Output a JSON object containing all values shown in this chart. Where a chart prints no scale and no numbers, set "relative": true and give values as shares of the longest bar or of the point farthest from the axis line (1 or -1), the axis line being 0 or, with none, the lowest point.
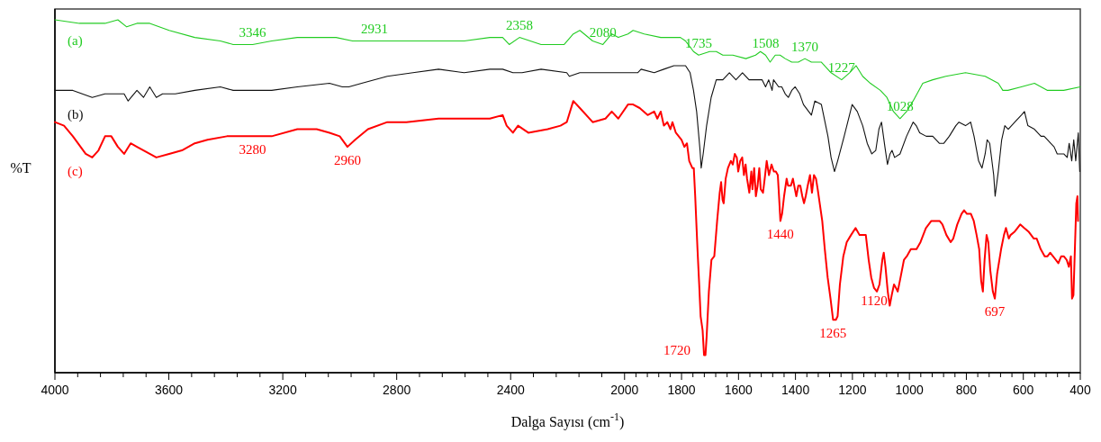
{
  "chart_data": {
    "type": "line",
    "relative": true,
    "xlabel": "Dalga Sayısı (cm$^{-1}$)",
    "ylabel": "%T",
    "xlim": [
      4000,
      400
    ],
    "xticks": [
      4000,
      3600,
      3200,
      2800,
      2400,
      2000,
      1800,
      1600,
      1400,
      1200,
      1000,
      800,
      600,
      400
    ],
    "grid": false,
    "marker": "none",
    "line_style": "solid",
    "series": [
      {
        "name": "(a)",
        "color": "#22cc22",
        "x": [
          4000,
          3914,
          3824,
          3779,
          3748,
          3712,
          3667,
          3599,
          3509,
          3419,
          3374,
          3306,
          3239,
          3149,
          3058,
          3013,
          2955,
          2878,
          2788,
          2698,
          2676,
          2630,
          2563,
          2473,
          2428,
          2405,
          2369,
          2293,
          2225,
          2212,
          2180,
          2157,
          2112,
          2076,
          2045,
          2022,
          1988,
          1970,
          1931,
          1873,
          1804,
          1786,
          1758,
          1740,
          1701,
          1678,
          1655,
          1620,
          1574,
          1540,
          1523,
          1505,
          1489,
          1471,
          1454,
          1436,
          1413,
          1390,
          1367,
          1344,
          1309,
          1275,
          1238,
          1210,
          1187,
          1164,
          1137,
          1102,
          1079,
          1056,
          1033,
          1010,
          987,
          953,
          918,
          872,
          803,
          734,
          688,
          672,
          654,
          607,
          561,
          515,
          492,
          458,
          400
        ],
        "values": [
          1.0,
          0.99,
          0.99,
          1.0,
          0.98,
          0.99,
          0.99,
          0.97,
          0.95,
          0.94,
          0.93,
          0.93,
          0.94,
          0.95,
          0.95,
          0.95,
          0.94,
          0.94,
          0.94,
          0.94,
          0.94,
          0.94,
          0.94,
          0.95,
          0.95,
          0.93,
          0.95,
          0.93,
          0.93,
          0.93,
          0.96,
          0.97,
          0.94,
          0.93,
          0.96,
          0.95,
          0.96,
          0.97,
          0.96,
          0.95,
          0.95,
          0.94,
          0.91,
          0.9,
          0.91,
          0.91,
          0.9,
          0.9,
          0.89,
          0.9,
          0.91,
          0.9,
          0.88,
          0.9,
          0.9,
          0.89,
          0.88,
          0.88,
          0.89,
          0.88,
          0.88,
          0.85,
          0.83,
          0.85,
          0.87,
          0.84,
          0.82,
          0.8,
          0.78,
          0.74,
          0.72,
          0.74,
          0.77,
          0.82,
          0.83,
          0.84,
          0.85,
          0.84,
          0.82,
          0.8,
          0.8,
          0.81,
          0.82,
          0.8,
          0.8,
          0.8,
          0.81
        ]
      },
      {
        "name": "(b)",
        "color": "#111111",
        "x": [
          4000,
          3937,
          3869,
          3824,
          3757,
          3743,
          3712,
          3689,
          3667,
          3644,
          3622,
          3577,
          3509,
          3419,
          3374,
          3306,
          3239,
          3149,
          3036,
          2991,
          2968,
          2923,
          2833,
          2743,
          2653,
          2563,
          2473,
          2428,
          2392,
          2360,
          2293,
          2203,
          2194,
          2157,
          2112,
          2022,
          1984,
          1954,
          1942,
          1896,
          1862,
          1827,
          1786,
          1770,
          1758,
          1747,
          1735,
          1731,
          1724,
          1712,
          1696,
          1678,
          1655,
          1632,
          1609,
          1586,
          1563,
          1540,
          1517,
          1505,
          1494,
          1482,
          1477,
          1459,
          1448,
          1436,
          1425,
          1413,
          1401,
          1385,
          1372,
          1344,
          1332,
          1309,
          1286,
          1275,
          1263,
          1252,
          1229,
          1201,
          1183,
          1164,
          1148,
          1132,
          1118,
          1107,
          1098,
          1086,
          1077,
          1068,
          1061,
          1052,
          1033,
          1010,
          987,
          976,
          964,
          941,
          918,
          895,
          879,
          860,
          837,
          826,
          803,
          785,
          773,
          757,
          745,
          734,
          727,
          718,
          704,
          699,
          688,
          676,
          665,
          653,
          630,
          607,
          596,
          584,
          561,
          538,
          527,
          515,
          504,
          492,
          481,
          458,
          446,
          439,
          430,
          423,
          416,
          407,
          402
        ],
        "values": [
          0.8,
          0.8,
          0.78,
          0.79,
          0.79,
          0.77,
          0.8,
          0.78,
          0.81,
          0.78,
          0.79,
          0.79,
          0.8,
          0.81,
          0.8,
          0.8,
          0.8,
          0.81,
          0.82,
          0.81,
          0.81,
          0.82,
          0.84,
          0.85,
          0.86,
          0.85,
          0.86,
          0.86,
          0.85,
          0.85,
          0.86,
          0.85,
          0.84,
          0.85,
          0.85,
          0.85,
          0.85,
          0.85,
          0.86,
          0.85,
          0.86,
          0.87,
          0.87,
          0.85,
          0.8,
          0.74,
          0.63,
          0.58,
          0.62,
          0.7,
          0.78,
          0.83,
          0.83,
          0.85,
          0.83,
          0.85,
          0.83,
          0.83,
          0.83,
          0.81,
          0.83,
          0.8,
          0.83,
          0.81,
          0.81,
          0.79,
          0.78,
          0.8,
          0.81,
          0.79,
          0.76,
          0.73,
          0.77,
          0.76,
          0.67,
          0.61,
          0.57,
          0.6,
          0.67,
          0.76,
          0.74,
          0.7,
          0.65,
          0.62,
          0.63,
          0.69,
          0.71,
          0.64,
          0.59,
          0.62,
          0.63,
          0.61,
          0.62,
          0.67,
          0.71,
          0.7,
          0.68,
          0.67,
          0.67,
          0.65,
          0.65,
          0.67,
          0.7,
          0.71,
          0.7,
          0.71,
          0.67,
          0.6,
          0.58,
          0.62,
          0.66,
          0.65,
          0.56,
          0.5,
          0.57,
          0.66,
          0.7,
          0.69,
          0.71,
          0.73,
          0.74,
          0.7,
          0.69,
          0.67,
          0.67,
          0.66,
          0.65,
          0.64,
          0.62,
          0.62,
          0.61,
          0.65,
          0.6,
          0.66,
          0.6,
          0.68,
          0.57
        ]
      },
      {
        "name": "(c)",
        "color": "#ff0000",
        "x": [
          4000,
          3968,
          3937,
          3892,
          3869,
          3847,
          3824,
          3802,
          3779,
          3757,
          3734,
          3712,
          3667,
          3644,
          3599,
          3554,
          3509,
          3464,
          3396,
          3306,
          3239,
          3149,
          3081,
          3036,
          3000,
          2973,
          2946,
          2901,
          2833,
          2766,
          2653,
          2563,
          2473,
          2428,
          2414,
          2392,
          2374,
          2338,
          2270,
          2225,
          2203,
          2180,
          2157,
          2112,
          2067,
          2045,
          2022,
          1988,
          1970,
          1947,
          1919,
          1896,
          1885,
          1873,
          1862,
          1850,
          1839,
          1832,
          1820,
          1800,
          1790,
          1781,
          1773,
          1762,
          1757,
          1752,
          1744,
          1738,
          1733,
          1726,
          1721,
          1716,
          1712,
          1704,
          1695,
          1685,
          1675,
          1666,
          1661,
          1656,
          1652,
          1645,
          1637,
          1627,
          1620,
          1613,
          1606,
          1601,
          1594,
          1587,
          1581,
          1575,
          1570,
          1562,
          1555,
          1551,
          1545,
          1539,
          1533,
          1527,
          1522,
          1514,
          1508,
          1501,
          1493,
          1484,
          1476,
          1469,
          1462,
          1457,
          1453,
          1447,
          1440,
          1431,
          1426,
          1416,
          1409,
          1402,
          1397,
          1390,
          1383,
          1376,
          1370,
          1364,
          1357,
          1349,
          1342,
          1335,
          1328,
          1322,
          1306,
          1297,
          1287,
          1277,
          1268,
          1258,
          1252,
          1244,
          1232,
          1220,
          1205,
          1189,
          1175,
          1165,
          1153,
          1143,
          1134,
          1124,
          1114,
          1105,
          1095,
          1090,
          1084,
          1076,
          1069,
          1062,
          1054,
          1047,
          1041,
          1031,
          1019,
          1009,
          995,
          975,
          961,
          942,
          923,
          894,
          884,
          870,
          855,
          846,
          832,
          817,
          808,
          798,
          784,
          774,
          764,
          755,
          748,
          742,
          736,
          729,
          723,
          716,
          707,
          700,
          692,
          678,
          668,
          661,
          651,
          645,
          630,
          611,
          597,
          582,
          563,
          553,
          539,
          525,
          515,
          506,
          496,
          486,
          477,
          467,
          458,
          448,
          440,
          433,
          429,
          424,
          419,
          414,
          410,
          408
        ],
        "values": [
          0.71,
          0.7,
          0.67,
          0.62,
          0.61,
          0.63,
          0.67,
          0.67,
          0.64,
          0.62,
          0.65,
          0.64,
          0.62,
          0.61,
          0.62,
          0.63,
          0.65,
          0.66,
          0.67,
          0.67,
          0.67,
          0.69,
          0.69,
          0.68,
          0.67,
          0.64,
          0.66,
          0.69,
          0.71,
          0.71,
          0.72,
          0.72,
          0.72,
          0.73,
          0.7,
          0.68,
          0.7,
          0.68,
          0.69,
          0.7,
          0.71,
          0.77,
          0.75,
          0.71,
          0.72,
          0.74,
          0.72,
          0.76,
          0.76,
          0.75,
          0.73,
          0.74,
          0.72,
          0.74,
          0.7,
          0.71,
          0.69,
          0.71,
          0.68,
          0.66,
          0.64,
          0.65,
          0.6,
          0.58,
          0.58,
          0.5,
          0.35,
          0.25,
          0.16,
          0.12,
          0.05,
          0.05,
          0.1,
          0.23,
          0.32,
          0.33,
          0.43,
          0.51,
          0.54,
          0.49,
          0.48,
          0.55,
          0.58,
          0.6,
          0.59,
          0.62,
          0.61,
          0.57,
          0.6,
          0.61,
          0.56,
          0.59,
          0.55,
          0.51,
          0.57,
          0.52,
          0.58,
          0.5,
          0.53,
          0.58,
          0.52,
          0.51,
          0.55,
          0.6,
          0.56,
          0.59,
          0.57,
          0.57,
          0.56,
          0.49,
          0.43,
          0.45,
          0.5,
          0.55,
          0.53,
          0.53,
          0.55,
          0.52,
          0.5,
          0.53,
          0.53,
          0.5,
          0.48,
          0.5,
          0.53,
          0.56,
          0.51,
          0.56,
          0.55,
          0.52,
          0.43,
          0.35,
          0.27,
          0.21,
          0.15,
          0.15,
          0.16,
          0.25,
          0.33,
          0.37,
          0.39,
          0.41,
          0.39,
          0.39,
          0.39,
          0.32,
          0.27,
          0.24,
          0.23,
          0.25,
          0.32,
          0.34,
          0.3,
          0.23,
          0.19,
          0.22,
          0.25,
          0.24,
          0.23,
          0.27,
          0.32,
          0.33,
          0.35,
          0.35,
          0.37,
          0.41,
          0.43,
          0.43,
          0.42,
          0.39,
          0.37,
          0.38,
          0.42,
          0.45,
          0.46,
          0.45,
          0.45,
          0.43,
          0.39,
          0.35,
          0.26,
          0.23,
          0.32,
          0.39,
          0.37,
          0.29,
          0.23,
          0.21,
          0.28,
          0.35,
          0.39,
          0.41,
          0.38,
          0.39,
          0.4,
          0.42,
          0.41,
          0.4,
          0.38,
          0.38,
          0.35,
          0.33,
          0.33,
          0.34,
          0.33,
          0.32,
          0.31,
          0.33,
          0.33,
          0.32,
          0.3,
          0.33,
          0.21,
          0.22,
          0.35,
          0.48,
          0.5,
          0.43
        ]
      }
    ],
    "annotations": [
      {
        "text": "3346",
        "x": 3306,
        "y": 0.93
      },
      {
        "text": "2931",
        "x": 2878,
        "y": 0.94
      },
      {
        "text": "2358",
        "x": 2369,
        "y": 0.95
      },
      {
        "text": "2080",
        "x": 2076,
        "y": 0.93
      },
      {
        "text": "1735",
        "x": 1740,
        "y": 0.9
      },
      {
        "text": "1508",
        "x": 1505,
        "y": 0.9
      },
      {
        "text": "1370",
        "x": 1367,
        "y": 0.89
      },
      {
        "text": "1227",
        "x": 1238,
        "y": 0.83
      },
      {
        "text": "1028",
        "x": 1033,
        "y": 0.72
      },
      {
        "text": "3280",
        "x": 3306,
        "y": 0.67
      },
      {
        "text": "2960",
        "x": 2973,
        "y": 0.64
      },
      {
        "text": "1720",
        "x": 1721,
        "y": 0.05
      },
      {
        "text": "1440",
        "x": 1453,
        "y": 0.43
      },
      {
        "text": "1265",
        "x": 1268,
        "y": 0.15
      },
      {
        "text": "1120",
        "x": 1124,
        "y": 0.24
      },
      {
        "text": "697",
        "x": 700,
        "y": 0.21
      }
    ]
  }
}
